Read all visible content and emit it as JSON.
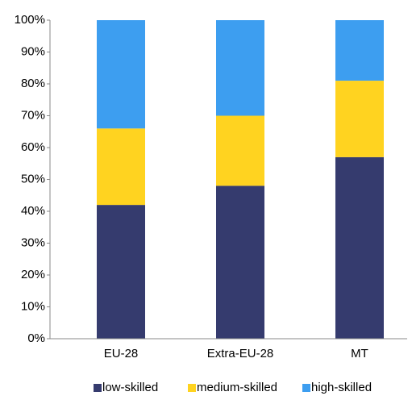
{
  "chart_data": {
    "type": "stacked_bar",
    "categories": [
      "EU-28",
      "Extra-EU-28",
      "MT"
    ],
    "series": [
      {
        "name": "low-skilled",
        "color": "#353b6e",
        "values": [
          42,
          48,
          57
        ]
      },
      {
        "name": "medium-skilled",
        "color": "#ffd320",
        "values": [
          24,
          22,
          24
        ]
      },
      {
        "name": "high-skilled",
        "color": "#3d9ef0",
        "values": [
          34,
          30,
          19
        ]
      }
    ],
    "ylim": [
      0,
      100
    ],
    "yticks": [
      {
        "value": 0,
        "label": "0%"
      },
      {
        "value": 10,
        "label": "10%"
      },
      {
        "value": 20,
        "label": "20%"
      },
      {
        "value": 30,
        "label": "30%"
      },
      {
        "value": 40,
        "label": "40%"
      },
      {
        "value": 50,
        "label": "50%"
      },
      {
        "value": 60,
        "label": "60%"
      },
      {
        "value": 70,
        "label": "70%"
      },
      {
        "value": 80,
        "label": "80%"
      },
      {
        "value": 90,
        "label": "90%"
      },
      {
        "value": 100,
        "label": "100%"
      }
    ],
    "grid": false,
    "legend": "bottom"
  }
}
